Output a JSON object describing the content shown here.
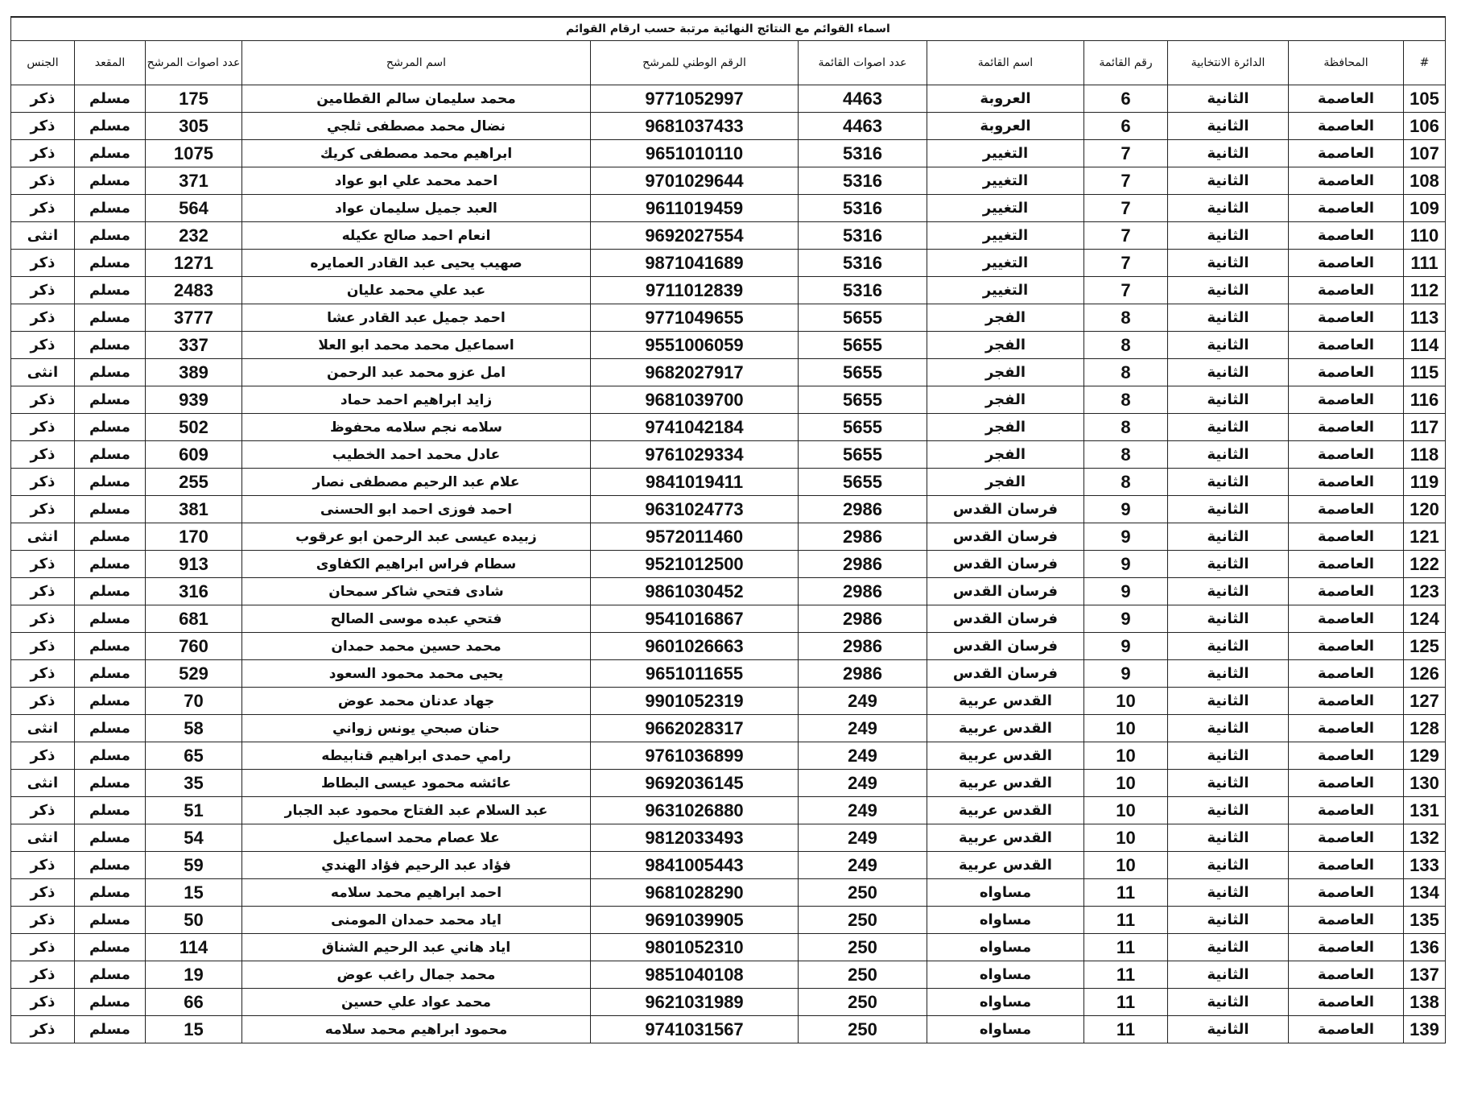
{
  "table": {
    "title": "اسماء القوائم مع النتائج النهائية مرتبة حسب ارقام القوائم",
    "header": [
      "#",
      "المحافظة",
      "الدائرة الانتخابية",
      "رقم القائمة",
      "اسم القائمة",
      "عدد اصوات القائمة",
      "الرقم الوطني للمرشح",
      "اسم المرشح",
      "عدد اصوات المرشح",
      "المقعد",
      "الجنس"
    ],
    "rows": [
      [
        "105",
        "العاصمة",
        "الثانية",
        "6",
        "العروبة",
        "4463",
        "9771052997",
        "محمد سليمان سالم القطامين",
        "175",
        "مسلم",
        "ذكر"
      ],
      [
        "106",
        "العاصمة",
        "الثانية",
        "6",
        "العروبة",
        "4463",
        "9681037433",
        "نضال محمد مصطفى ثلجي",
        "305",
        "مسلم",
        "ذكر"
      ],
      [
        "107",
        "العاصمة",
        "الثانية",
        "7",
        "التغيير",
        "5316",
        "9651010110",
        "ابراهيم محمد مصطفى كريك",
        "1075",
        "مسلم",
        "ذكر"
      ],
      [
        "108",
        "العاصمة",
        "الثانية",
        "7",
        "التغيير",
        "5316",
        "9701029644",
        "احمد محمد علي ابو عواد",
        "371",
        "مسلم",
        "ذكر"
      ],
      [
        "109",
        "العاصمة",
        "الثانية",
        "7",
        "التغيير",
        "5316",
        "9611019459",
        "العبد جميل سليمان عواد",
        "564",
        "مسلم",
        "ذكر"
      ],
      [
        "110",
        "العاصمة",
        "الثانية",
        "7",
        "التغيير",
        "5316",
        "9692027554",
        "انعام احمد صالح عكيله",
        "232",
        "مسلم",
        "انثى"
      ],
      [
        "111",
        "العاصمة",
        "الثانية",
        "7",
        "التغيير",
        "5316",
        "9871041689",
        "صهيب يحيى عبد القادر العمايره",
        "1271",
        "مسلم",
        "ذكر"
      ],
      [
        "112",
        "العاصمة",
        "الثانية",
        "7",
        "التغيير",
        "5316",
        "9711012839",
        "عبد علي محمد عليان",
        "2483",
        "مسلم",
        "ذكر"
      ],
      [
        "113",
        "العاصمة",
        "الثانية",
        "8",
        "الفجر",
        "5655",
        "9771049655",
        "احمد جميل عبد القادر عشا",
        "3777",
        "مسلم",
        "ذكر"
      ],
      [
        "114",
        "العاصمة",
        "الثانية",
        "8",
        "الفجر",
        "5655",
        "9551006059",
        "اسماعيل محمد محمد ابو العلا",
        "337",
        "مسلم",
        "ذكر"
      ],
      [
        "115",
        "العاصمة",
        "الثانية",
        "8",
        "الفجر",
        "5655",
        "9682027917",
        "امل عزو محمد عبد الرحمن",
        "389",
        "مسلم",
        "انثى"
      ],
      [
        "116",
        "العاصمة",
        "الثانية",
        "8",
        "الفجر",
        "5655",
        "9681039700",
        "زايد ابراهيم احمد حماد",
        "939",
        "مسلم",
        "ذكر"
      ],
      [
        "117",
        "العاصمة",
        "الثانية",
        "8",
        "الفجر",
        "5655",
        "9741042184",
        "سلامه نجم سلامه محفوظ",
        "502",
        "مسلم",
        "ذكر"
      ],
      [
        "118",
        "العاصمة",
        "الثانية",
        "8",
        "الفجر",
        "5655",
        "9761029334",
        "عادل محمد احمد الخطيب",
        "609",
        "مسلم",
        "ذكر"
      ],
      [
        "119",
        "العاصمة",
        "الثانية",
        "8",
        "الفجر",
        "5655",
        "9841019411",
        "علام عبد الرحيم مصطفى نصار",
        "255",
        "مسلم",
        "ذكر"
      ],
      [
        "120",
        "العاصمة",
        "الثانية",
        "9",
        "فرسان القدس",
        "2986",
        "9631024773",
        "احمد فوزى احمد ابو الحسنى",
        "381",
        "مسلم",
        "ذكر"
      ],
      [
        "121",
        "العاصمة",
        "الثانية",
        "9",
        "فرسان القدس",
        "2986",
        "9572011460",
        "زبيده عيسى عبد الرحمن ابو عرقوب",
        "170",
        "مسلم",
        "انثى"
      ],
      [
        "122",
        "العاصمة",
        "الثانية",
        "9",
        "فرسان القدس",
        "2986",
        "9521012500",
        "سطام فراس ابراهيم الكفاوى",
        "913",
        "مسلم",
        "ذكر"
      ],
      [
        "123",
        "العاصمة",
        "الثانية",
        "9",
        "فرسان القدس",
        "2986",
        "9861030452",
        "شادى فتحي شاكر سمحان",
        "316",
        "مسلم",
        "ذكر"
      ],
      [
        "124",
        "العاصمة",
        "الثانية",
        "9",
        "فرسان القدس",
        "2986",
        "9541016867",
        "فتحي عبده موسى الصالح",
        "681",
        "مسلم",
        "ذكر"
      ],
      [
        "125",
        "العاصمة",
        "الثانية",
        "9",
        "فرسان القدس",
        "2986",
        "9601026663",
        "محمد حسين محمد حمدان",
        "760",
        "مسلم",
        "ذكر"
      ],
      [
        "126",
        "العاصمة",
        "الثانية",
        "9",
        "فرسان القدس",
        "2986",
        "9651011655",
        "يحيى محمد محمود السعود",
        "529",
        "مسلم",
        "ذكر"
      ],
      [
        "127",
        "العاصمة",
        "الثانية",
        "10",
        "القدس عربية",
        "249",
        "9901052319",
        "جهاد عدنان محمد عوض",
        "70",
        "مسلم",
        "ذكر"
      ],
      [
        "128",
        "العاصمة",
        "الثانية",
        "10",
        "القدس عربية",
        "249",
        "9662028317",
        "حنان صبحي يونس زواني",
        "58",
        "مسلم",
        "انثى"
      ],
      [
        "129",
        "العاصمة",
        "الثانية",
        "10",
        "القدس عربية",
        "249",
        "9761036899",
        "رامي حمدى ابراهيم قنابيطه",
        "65",
        "مسلم",
        "ذكر"
      ],
      [
        "130",
        "العاصمة",
        "الثانية",
        "10",
        "القدس عربية",
        "249",
        "9692036145",
        "عائشه محمود عيسى البطاط",
        "35",
        "مسلم",
        "انثى"
      ],
      [
        "131",
        "العاصمة",
        "الثانية",
        "10",
        "القدس عربية",
        "249",
        "9631026880",
        "عبد السلام عبد الفتاح محمود عبد الجبار",
        "51",
        "مسلم",
        "ذكر"
      ],
      [
        "132",
        "العاصمة",
        "الثانية",
        "10",
        "القدس عربية",
        "249",
        "9812033493",
        "علا عصام محمد اسماعيل",
        "54",
        "مسلم",
        "انثى"
      ],
      [
        "133",
        "العاصمة",
        "الثانية",
        "10",
        "القدس عربية",
        "249",
        "9841005443",
        "فؤاد عبد الرحيم فؤاد الهندي",
        "59",
        "مسلم",
        "ذكر"
      ],
      [
        "134",
        "العاصمة",
        "الثانية",
        "11",
        "مساواه",
        "250",
        "9681028290",
        "احمد ابراهيم محمد سلامه",
        "15",
        "مسلم",
        "ذكر"
      ],
      [
        "135",
        "العاصمة",
        "الثانية",
        "11",
        "مساواه",
        "250",
        "9691039905",
        "اياد محمد حمدان المومنى",
        "50",
        "مسلم",
        "ذكر"
      ],
      [
        "136",
        "العاصمة",
        "الثانية",
        "11",
        "مساواه",
        "250",
        "9801052310",
        "اياد هاني عبد الرحيم الشناق",
        "114",
        "مسلم",
        "ذكر"
      ],
      [
        "137",
        "العاصمة",
        "الثانية",
        "11",
        "مساواه",
        "250",
        "9851040108",
        "محمد جمال راغب عوض",
        "19",
        "مسلم",
        "ذكر"
      ],
      [
        "138",
        "العاصمة",
        "الثانية",
        "11",
        "مساواه",
        "250",
        "9621031989",
        "محمد عواد علي حسين",
        "66",
        "مسلم",
        "ذكر"
      ],
      [
        "139",
        "العاصمة",
        "الثانية",
        "11",
        "مساواه",
        "250",
        "9741031567",
        "محمود ابراهيم محمد سلامه",
        "15",
        "مسلم",
        "ذكر"
      ]
    ]
  }
}
